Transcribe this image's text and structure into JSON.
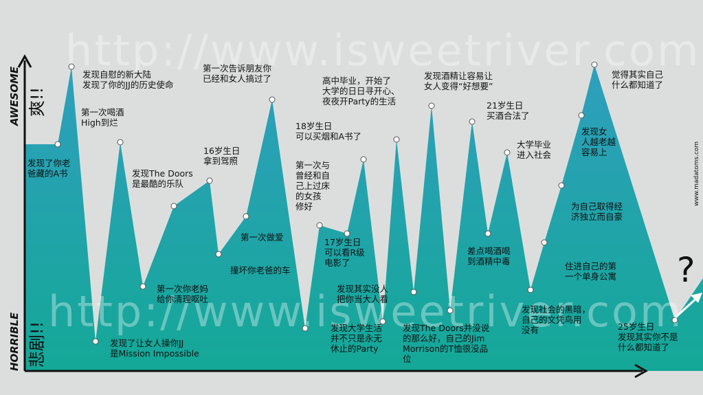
{
  "chart_data": {
    "type": "area",
    "watermark_text": "http://www.isweetriver.com",
    "side_credit": "www.madatoms.com",
    "y_axis": {
      "top_word": "AWESOME",
      "top_cn": "爽!!",
      "bottom_word": "HORRIBLE",
      "bottom_cn": "悲剧!!"
    },
    "ending_mark": "?",
    "colors": {
      "area_top": "#2f9fbd",
      "area_bottom": "#14a897",
      "axis": "#111111",
      "background": "#dcdedd"
    },
    "points": [
      {
        "label": "发现了你老\n爸藏的A书"
      },
      {
        "label": "发现自慰的新大陆\n发现了你的JJ的历史使命"
      },
      {
        "label": "发现了让女人操你JJ\n是Mission Impossible"
      },
      {
        "label": "第一次喝酒\nHigh到烂"
      },
      {
        "label": "第一次你老妈\n给你清理呕吐"
      },
      {
        "label": "发现The Doors\n是最酷的乐队"
      },
      {
        "label": "16岁生日\n拿到驾照"
      },
      {
        "label": "撞坏你老爸的车"
      },
      {
        "label": "第一次做爱"
      },
      {
        "label": "第一次告诉朋友你\n已经和女人搞过了"
      },
      {
        "label": ""
      },
      {
        "label": "第一次与\n曾经和自\n己上过床\n的女孩\n修好"
      },
      {
        "label": "17岁生日\n可以看R级\n电影了"
      },
      {
        "label": "18岁生日\n可以买烟和A书了"
      },
      {
        "label": "发现大学生活\n并不只是永无\n休止的Party"
      },
      {
        "label": "高中毕业，开始了\n大学的日日寻开心、\n夜夜开Party的生活"
      },
      {
        "label": "发现其实没人\n把你当大人看"
      },
      {
        "label": "发现酒精让容易让\n女人变得“好想要”"
      },
      {
        "label": "发现The Doors并没说\n的那么好，自己的Jim\nMorrison的T恤很没品\n位"
      },
      {
        "label": "21岁生日\n买酒合法了"
      },
      {
        "label": "差点喝酒喝\n到酒精中毒"
      },
      {
        "label": "大学毕业\n进入社会"
      },
      {
        "label": "发现社会的黑暗，\n自己的文凭鸟用\n没有"
      },
      {
        "label": "住进自己的第\n一个单身公寓"
      },
      {
        "label": "为自己取得经\n济独立而自豪"
      },
      {
        "label": "发现女\n人越老越\n容易上"
      },
      {
        "label": "觉得其实自己\n什么都知道了"
      },
      {
        "label": "25岁生日\n发现其实你不是\n什么都知道了"
      }
    ]
  }
}
